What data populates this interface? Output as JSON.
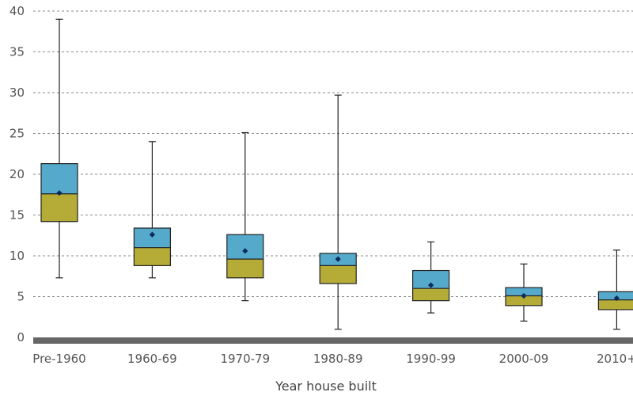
{
  "chart_data": {
    "type": "boxplot",
    "title": "",
    "xlabel": "Year house built",
    "ylabel": "",
    "ylim": [
      0,
      40
    ],
    "yticks": [
      0,
      5,
      10,
      15,
      20,
      25,
      30,
      35,
      40
    ],
    "grid": true,
    "categories": [
      "Pre-1960",
      "1960-69",
      "1970-79",
      "1980-89",
      "1990-99",
      "2000-09",
      "2010+"
    ],
    "boxes": [
      {
        "category": "Pre-1960",
        "min": 7.3,
        "q1": 14.2,
        "median": 17.6,
        "q3": 21.3,
        "max": 39.0,
        "mean": 17.7
      },
      {
        "category": "1960-69",
        "min": 7.3,
        "q1": 8.8,
        "median": 11.0,
        "q3": 13.4,
        "max": 24.0,
        "mean": 12.6
      },
      {
        "category": "1970-79",
        "min": 4.5,
        "q1": 7.3,
        "median": 9.6,
        "q3": 12.6,
        "max": 25.1,
        "mean": 10.6
      },
      {
        "category": "1980-89",
        "min": 1.0,
        "q1": 6.6,
        "median": 8.8,
        "q3": 10.3,
        "max": 29.7,
        "mean": 9.6
      },
      {
        "category": "1990-99",
        "min": 3.0,
        "q1": 4.5,
        "median": 6.0,
        "q3": 8.2,
        "max": 11.7,
        "mean": 6.4
      },
      {
        "category": "2000-09",
        "min": 2.0,
        "q1": 3.9,
        "median": 5.1,
        "q3": 6.1,
        "max": 9.0,
        "mean": 5.1
      },
      {
        "category": "2010+",
        "min": 1.0,
        "q1": 3.4,
        "median": 4.6,
        "q3": 5.6,
        "max": 10.7,
        "mean": 4.8
      }
    ],
    "colors": {
      "upper_box": "#55a9cb",
      "lower_box": "#b5ac38",
      "mean_marker": "#0b2a5a",
      "baseline": "#666666"
    }
  }
}
